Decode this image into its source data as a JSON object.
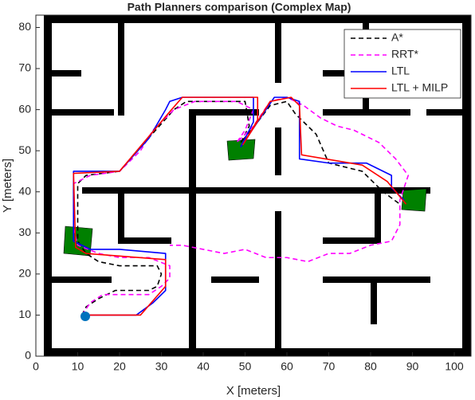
{
  "chart_data": {
    "type": "line",
    "title": "Path Planners comparison (Complex Map)",
    "x_label": "X [meters]",
    "y_label": "Y [meters]",
    "xlim": [
      0,
      104
    ],
    "ylim": [
      0,
      83
    ],
    "xticks": [
      0,
      10,
      20,
      30,
      40,
      50,
      60,
      70,
      80,
      90,
      100
    ],
    "yticks": [
      0,
      10,
      20,
      30,
      40,
      50,
      60,
      70,
      80
    ],
    "legend": "upper right",
    "series": [
      {
        "name": "A*",
        "color": "#000000",
        "linestyle": "dashed",
        "x": [
          11,
          12,
          15,
          19,
          27,
          29,
          30,
          29,
          20,
          15,
          12,
          10,
          10,
          12,
          20,
          26,
          33,
          36,
          50,
          51,
          49,
          53,
          56,
          60,
          62,
          67,
          70,
          78,
          83,
          87
        ],
        "values": [
          10,
          12,
          14,
          16,
          16,
          17,
          20,
          22,
          22,
          23,
          25,
          28,
          42,
          44,
          45,
          52,
          60,
          62,
          62,
          56,
          52,
          57,
          61,
          62,
          59,
          54,
          47,
          45,
          40,
          37
        ]
      },
      {
        "name": "RRT*",
        "color": "#ff00ff",
        "linestyle": "dashed",
        "x": [
          11,
          13,
          16,
          22,
          27,
          30,
          32,
          32,
          27,
          20,
          15,
          10,
          9,
          9,
          13,
          20,
          25,
          28,
          33,
          38,
          48,
          52,
          50,
          48,
          52,
          56,
          60,
          64,
          68,
          72,
          76,
          82,
          86,
          89,
          87,
          87,
          85,
          80,
          75,
          70,
          65,
          60,
          55,
          50,
          45,
          40,
          35,
          32
        ],
        "values": [
          10,
          13,
          15,
          15,
          15,
          17,
          19,
          22,
          24,
          24,
          25,
          27,
          31,
          42,
          44,
          45,
          50,
          55,
          60,
          62,
          62,
          60,
          55,
          52,
          56,
          62,
          63,
          61,
          58,
          56,
          55,
          52,
          48,
          44,
          38,
          32,
          28,
          27,
          25,
          25,
          23,
          24,
          24,
          26,
          25,
          26,
          27,
          27
        ]
      },
      {
        "name": "LTL",
        "color": "#0000ff",
        "linestyle": "solid",
        "x": [
          11,
          24,
          28,
          31,
          31,
          20,
          13,
          9,
          9,
          20,
          27,
          31,
          32,
          35,
          52,
          52,
          49,
          51,
          55,
          57,
          60,
          63,
          63,
          70,
          79,
          85,
          85,
          88
        ],
        "values": [
          10,
          10,
          13,
          16,
          25,
          26,
          26,
          28,
          45,
          45,
          53,
          60,
          62,
          63,
          63,
          57,
          51,
          54,
          60,
          63,
          63,
          62,
          48,
          47,
          47,
          44,
          41,
          38
        ]
      },
      {
        "name": "LTL + MILP",
        "color": "#ff0000",
        "linestyle": "solid",
        "x": [
          11,
          25,
          31,
          31,
          12,
          9.5,
          9,
          20,
          32,
          35,
          53,
          53,
          49.5,
          56,
          61,
          63,
          63.5,
          78,
          84,
          88.5
        ],
        "values": [
          10,
          10,
          17,
          23.5,
          25,
          26.5,
          44.5,
          45,
          59.5,
          63,
          63,
          57.5,
          51.5,
          62,
          63,
          61,
          49,
          46.5,
          42.5,
          37
        ]
      }
    ]
  }
}
